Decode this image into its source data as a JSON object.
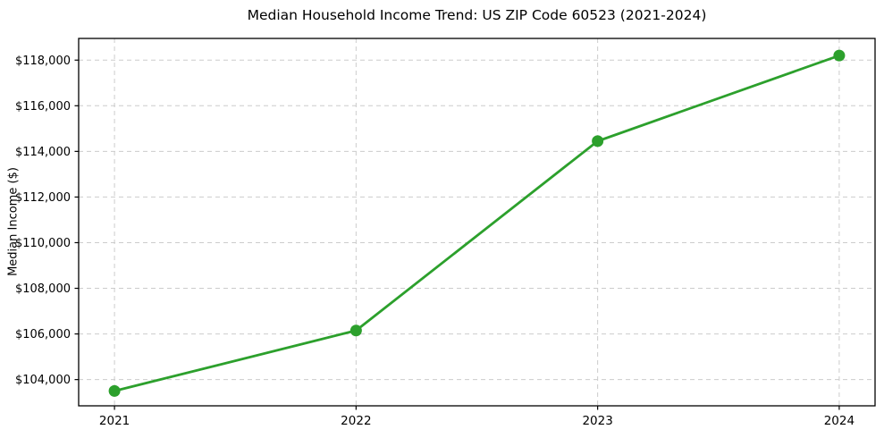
{
  "chart_data": {
    "type": "line",
    "title": "Median Household Income Trend: US ZIP Code 60523 (2021-2024)",
    "xlabel": "",
    "ylabel": "Median Income ($)",
    "categories": [
      "2021",
      "2022",
      "2023",
      "2024"
    ],
    "series": [
      {
        "name": "Median Household Income",
        "values": [
          103500,
          106150,
          114450,
          118200
        ]
      }
    ],
    "y_ticks": [
      104000,
      106000,
      108000,
      110000,
      112000,
      114000,
      116000,
      118000
    ],
    "y_tick_labels": [
      "$104,000",
      "$106,000",
      "$108,000",
      "$110,000",
      "$112,000",
      "$114,000",
      "$116,000",
      "$118,000"
    ],
    "ylim": [
      102850,
      118950
    ],
    "grid": true,
    "grid_style": "dashed",
    "legend_position": "none",
    "marker": "circle",
    "colors": {
      "line": "#2ca02c",
      "marker": "#2ca02c",
      "grid": "#cccccc",
      "axis": "#000000",
      "text": "#000000",
      "background": "#ffffff"
    }
  }
}
